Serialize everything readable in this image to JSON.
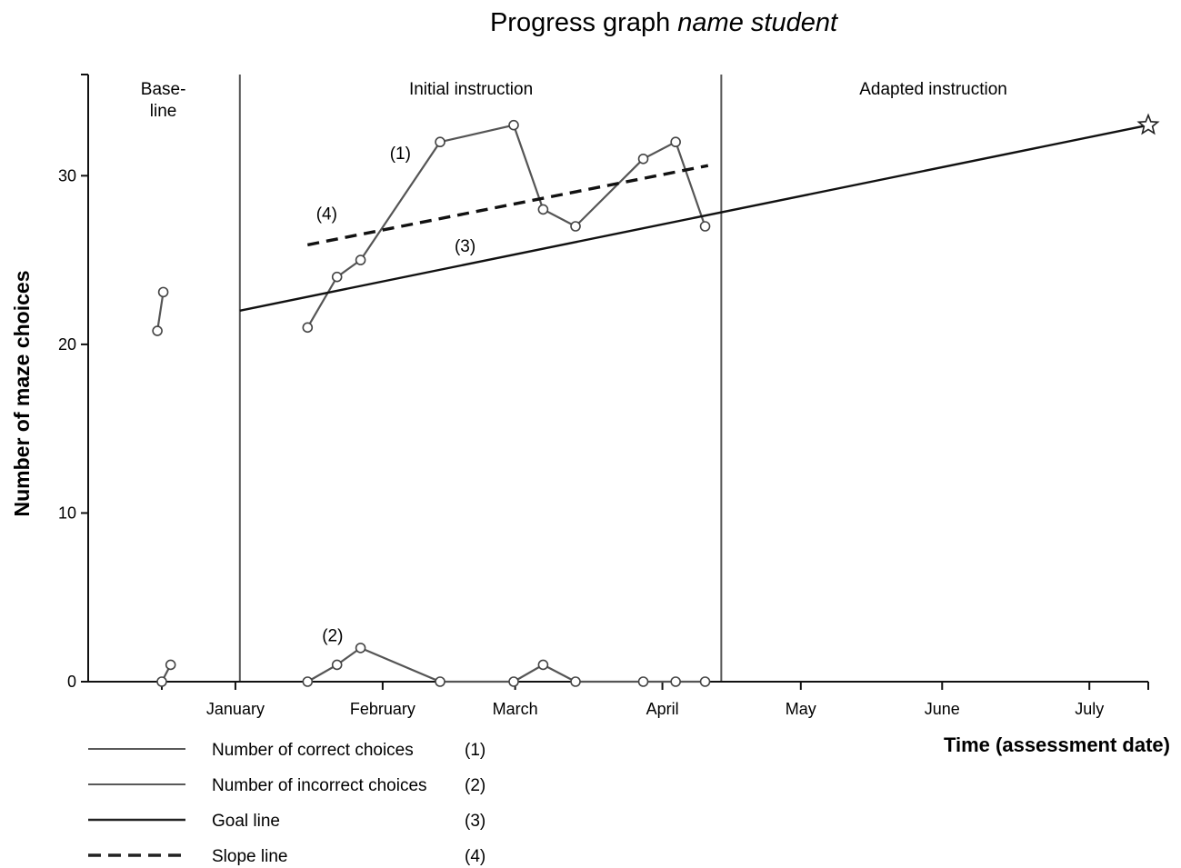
{
  "chart_data": {
    "type": "line",
    "title": "Progress graph",
    "title_italic": "name student",
    "ylabel": "Number of maze choices",
    "xlabel": "Time (assessment date)",
    "ylim": [
      0,
      36
    ],
    "xlim": [
      0,
      36
    ],
    "yticks": [
      0,
      10,
      20,
      30
    ],
    "month_ticks": [
      {
        "x": 5,
        "label": "January"
      },
      {
        "x": 10,
        "label": "February"
      },
      {
        "x": 14.5,
        "label": "March"
      },
      {
        "x": 19.5,
        "label": "April"
      },
      {
        "x": 24.2,
        "label": "May"
      },
      {
        "x": 29,
        "label": "June"
      },
      {
        "x": 34,
        "label": "July"
      }
    ],
    "minor_ticks": [
      2.5,
      36
    ],
    "phase_lines": [
      5.15,
      21.5
    ],
    "phases": [
      {
        "label": "Base-\nline",
        "x": 2.55
      },
      {
        "label": "Initial instruction",
        "x": 13
      },
      {
        "label": "Adapted instruction",
        "x": 28.7
      }
    ],
    "series": [
      {
        "name": "Number of correct choices",
        "marker": "(1)",
        "label_pos": [
          10.6,
          31
        ],
        "segments": [
          [
            [
              2.35,
              20.8
            ],
            [
              2.55,
              23.1
            ]
          ],
          [
            [
              7.45,
              21
            ],
            [
              8.45,
              24
            ],
            [
              9.25,
              25
            ],
            [
              11.95,
              32
            ],
            [
              14.45,
              33
            ],
            [
              15.45,
              28
            ],
            [
              16.55,
              27
            ],
            [
              18.85,
              31
            ],
            [
              19.95,
              32
            ],
            [
              20.95,
              27
            ]
          ]
        ]
      },
      {
        "name": "Number of incorrect choices",
        "marker": "(2)",
        "label_pos": [
          8.3,
          2.4
        ],
        "segments": [
          [
            [
              2.5,
              0
            ],
            [
              2.8,
              1
            ]
          ],
          [
            [
              7.45,
              0
            ],
            [
              8.45,
              1
            ],
            [
              9.25,
              2
            ],
            [
              11.95,
              0
            ],
            [
              14.45,
              0
            ],
            [
              15.45,
              1
            ],
            [
              16.55,
              0
            ],
            [
              18.85,
              0
            ],
            [
              19.95,
              0
            ],
            [
              20.95,
              0
            ]
          ]
        ]
      },
      {
        "name": "Goal line",
        "marker": "(3)",
        "label_pos": [
          12.8,
          25.5
        ],
        "from": [
          5.15,
          22.0
        ],
        "to": [
          36,
          33.0
        ],
        "goal_star": true
      },
      {
        "name": "Slope line",
        "marker": "(4)",
        "label_pos": [
          8.1,
          27.4
        ],
        "dashed": true,
        "from": [
          7.45,
          25.9
        ],
        "to": [
          21.05,
          30.6
        ]
      }
    ],
    "legend": [
      {
        "label": "Number of correct choices",
        "marker": "(1)",
        "style": "solid-thin"
      },
      {
        "label": "Number of incorrect choices",
        "marker": "(2)",
        "style": "solid-thin"
      },
      {
        "label": "Goal line",
        "marker": "(3)",
        "style": "solid"
      },
      {
        "label": "Slope line",
        "marker": "(4)",
        "style": "dashed"
      }
    ],
    "grid": false,
    "legend_position": "bottom-left"
  }
}
